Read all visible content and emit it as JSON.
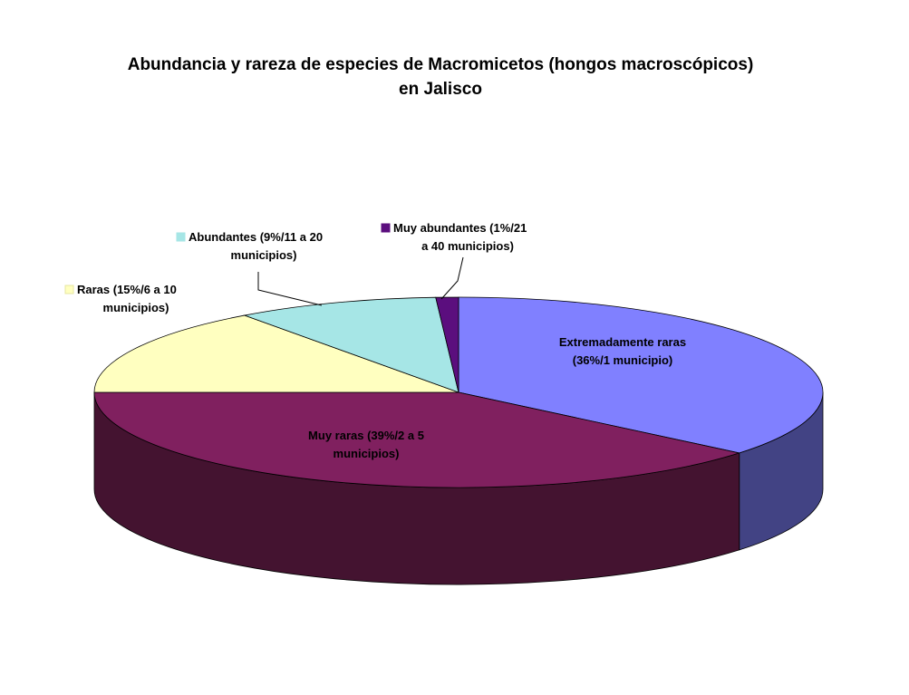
{
  "chart_data": {
    "type": "pie",
    "title": "Abundancia y rareza de especies de Macromicetos (hongos macroscópicos) en Jalisco",
    "title_lines": [
      "Abundancia y rareza de especies de Macromicetos (hongos macroscópicos)",
      "en Jalisco"
    ],
    "three_d": true,
    "slices": [
      {
        "category": "Extremadamente raras",
        "value": 36,
        "label_lines": [
          "Extremadamente raras",
          "(36%/1 municipio)"
        ],
        "color": "#8080FF",
        "side_color": "#424384"
      },
      {
        "category": "Muy raras",
        "value": 39,
        "label_lines": [
          "Muy raras (39%/2 a 5",
          "municipios)"
        ],
        "color": "#80205F",
        "side_color": "#441330"
      },
      {
        "category": "Raras",
        "value": 15,
        "label_lines": [
          "Raras (15%/6 a 10",
          "municipios)"
        ],
        "color": "#FFFFC0",
        "side_color": "#D8D8A0"
      },
      {
        "category": "Abundantes",
        "value": 9,
        "label_lines": [
          "Abundantes (9%/11 a 20",
          "municipios)"
        ],
        "color": "#A6E6E6",
        "side_color": "#6FAFAF"
      },
      {
        "category": "Muy abundantes",
        "value": 1,
        "label_lines": [
          "Muy abundantes (1%/21",
          "a 40 municipios)"
        ],
        "color": "#5B0E7E",
        "side_color": "#330645"
      }
    ],
    "legend": "none"
  }
}
